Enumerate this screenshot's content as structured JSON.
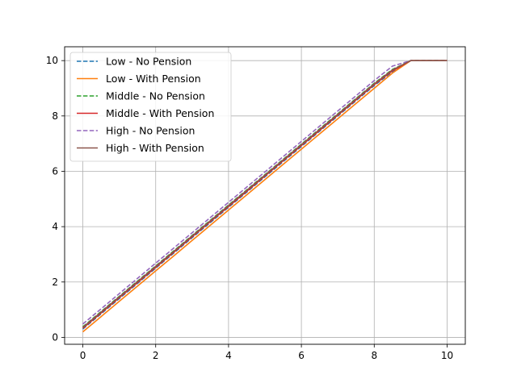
{
  "chart_data": {
    "type": "line",
    "title": "",
    "xlabel": "",
    "ylabel": "",
    "xlim": [
      -0.5,
      10.5
    ],
    "ylim": [
      -0.25,
      10.5
    ],
    "x_ticks": [
      0,
      2,
      4,
      6,
      8,
      10
    ],
    "y_ticks": [
      0,
      2,
      4,
      6,
      8,
      10
    ],
    "grid": true,
    "legend_position": "top-left",
    "series": [
      {
        "name": "Low - No Pension",
        "color": "#1f77b4",
        "dash": true,
        "x": [
          0,
          0.5,
          1,
          1.5,
          2,
          2.5,
          3,
          3.5,
          4,
          4.5,
          5,
          5.5,
          6,
          6.5,
          7,
          7.5,
          8,
          8.5,
          9,
          9.5,
          10
        ],
        "y": [
          0.3,
          0.85,
          1.4,
          1.95,
          2.5,
          3.05,
          3.6,
          4.15,
          4.7,
          5.25,
          5.8,
          6.35,
          6.9,
          7.45,
          8.0,
          8.55,
          9.1,
          9.6,
          10.0,
          10.0,
          10.0
        ]
      },
      {
        "name": "Low - With Pension",
        "color": "#ff7f0e",
        "dash": false,
        "x": [
          0,
          0.5,
          1,
          1.5,
          2,
          2.5,
          3,
          3.5,
          4,
          4.5,
          5,
          5.5,
          6,
          6.5,
          7,
          7.5,
          8,
          8.5,
          9,
          9.5,
          10
        ],
        "y": [
          0.2,
          0.75,
          1.3,
          1.85,
          2.4,
          2.95,
          3.5,
          4.05,
          4.6,
          5.15,
          5.7,
          6.25,
          6.8,
          7.35,
          7.9,
          8.45,
          9.0,
          9.55,
          10.0,
          10.0,
          10.0
        ]
      },
      {
        "name": "Middle - No Pension",
        "color": "#2ca02c",
        "dash": true,
        "x": [
          0,
          0.5,
          1,
          1.5,
          2,
          2.5,
          3,
          3.5,
          4,
          4.5,
          5,
          5.5,
          6,
          6.5,
          7,
          7.5,
          8,
          8.5,
          9,
          9.5,
          10
        ],
        "y": [
          0.38,
          0.93,
          1.48,
          2.03,
          2.58,
          3.13,
          3.68,
          4.23,
          4.78,
          5.33,
          5.88,
          6.43,
          6.98,
          7.53,
          8.08,
          8.63,
          9.18,
          9.68,
          10.0,
          10.0,
          10.0
        ]
      },
      {
        "name": "Middle - With Pension",
        "color": "#d62728",
        "dash": false,
        "x": [
          0,
          0.5,
          1,
          1.5,
          2,
          2.5,
          3,
          3.5,
          4,
          4.5,
          5,
          5.5,
          6,
          6.5,
          7,
          7.5,
          8,
          8.5,
          9,
          9.5,
          10
        ],
        "y": [
          0.33,
          0.88,
          1.43,
          1.98,
          2.53,
          3.08,
          3.63,
          4.18,
          4.73,
          5.28,
          5.83,
          6.38,
          6.93,
          7.48,
          8.03,
          8.58,
          9.13,
          9.63,
          10.0,
          10.0,
          10.0
        ]
      },
      {
        "name": "High - No Pension",
        "color": "#9467bd",
        "dash": true,
        "x": [
          0,
          0.5,
          1,
          1.5,
          2,
          2.5,
          3,
          3.5,
          4,
          4.5,
          5,
          5.5,
          6,
          6.5,
          7,
          7.5,
          8,
          8.5,
          9,
          9.5,
          10
        ],
        "y": [
          0.48,
          1.03,
          1.58,
          2.13,
          2.68,
          3.23,
          3.78,
          4.33,
          4.88,
          5.43,
          5.98,
          6.53,
          7.08,
          7.63,
          8.18,
          8.73,
          9.28,
          9.8,
          10.0,
          10.0,
          10.0
        ]
      },
      {
        "name": "High - With Pension",
        "color": "#8c564b",
        "dash": false,
        "x": [
          0,
          0.5,
          1,
          1.5,
          2,
          2.5,
          3,
          3.5,
          4,
          4.5,
          5,
          5.5,
          6,
          6.5,
          7,
          7.5,
          8,
          8.5,
          9,
          9.5,
          10
        ],
        "y": [
          0.36,
          0.91,
          1.46,
          2.01,
          2.56,
          3.11,
          3.66,
          4.21,
          4.76,
          5.31,
          5.86,
          6.41,
          6.96,
          7.51,
          8.06,
          8.61,
          9.16,
          9.66,
          10.0,
          10.0,
          10.0
        ]
      }
    ]
  }
}
